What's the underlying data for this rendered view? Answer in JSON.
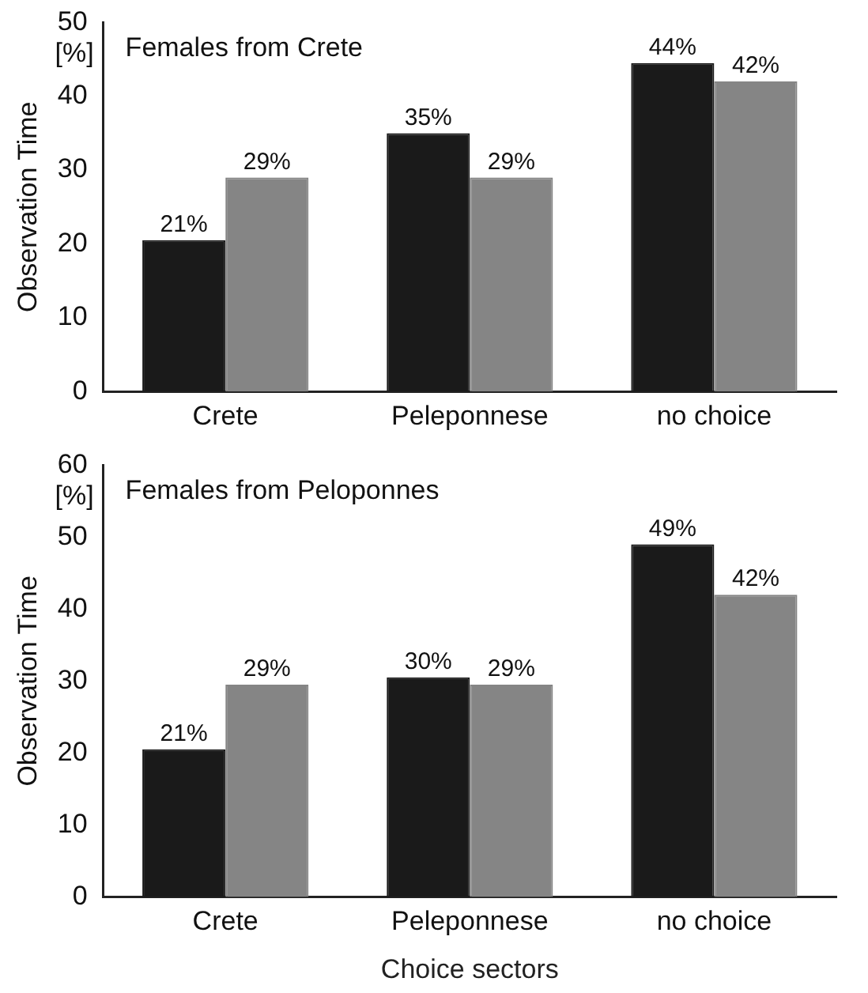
{
  "chart_data": [
    {
      "type": "bar",
      "title": "Females from Crete",
      "ylabel": "Observation Time",
      "annotations": [
        "[%]"
      ],
      "categories": [
        "Crete",
        "Peleponnese",
        "no choice"
      ],
      "series": [
        {
          "color": "#1a1a1a",
          "values": [
            20.5,
            35,
            44.5
          ],
          "value_labels": [
            "21%",
            "35%",
            "44%"
          ]
        },
        {
          "color": "#858585",
          "values": [
            29,
            29,
            42
          ],
          "value_labels": [
            "29%",
            "29%",
            "42%"
          ]
        }
      ],
      "ylim": [
        0,
        50
      ],
      "yticks": [
        0,
        10,
        20,
        30,
        40,
        50
      ],
      "grid": false,
      "legend": false
    },
    {
      "type": "bar",
      "title": "Females from Peloponnes",
      "ylabel": "Observation Time",
      "xlabel": "Choice sectors",
      "annotations": [
        "[%]"
      ],
      "categories": [
        "Crete",
        "Peleponnese",
        "no choice"
      ],
      "series": [
        {
          "color": "#1a1a1a",
          "values": [
            20.5,
            30.5,
            49
          ],
          "value_labels": [
            "21%",
            "30%",
            "49%"
          ]
        },
        {
          "color": "#858585",
          "values": [
            29.5,
            29.5,
            42
          ],
          "value_labels": [
            "29%",
            "29%",
            "42%"
          ]
        }
      ],
      "ylim": [
        0,
        60
      ],
      "yticks": [
        0,
        10,
        20,
        30,
        40,
        50,
        60
      ],
      "grid": false,
      "legend": false
    }
  ]
}
